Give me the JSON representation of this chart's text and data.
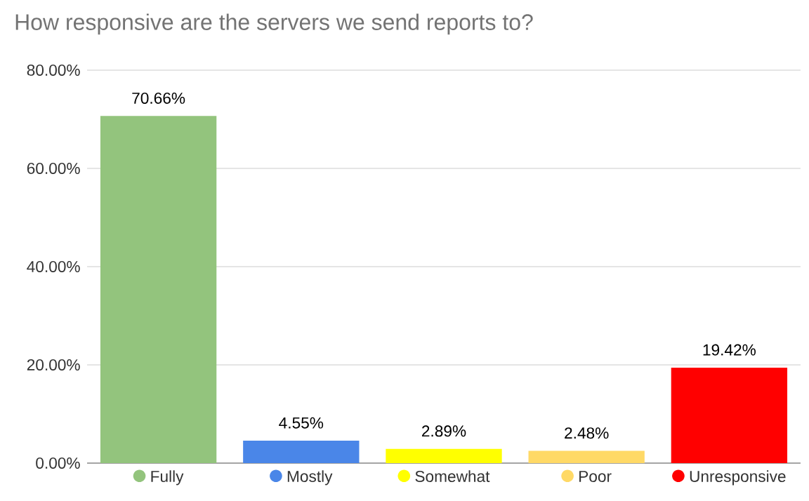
{
  "chart_data": {
    "type": "bar",
    "title": "How responsive are the servers we send reports to?",
    "categories": [
      "Fully",
      "Mostly",
      "Somewhat",
      "Poor",
      "Unresponsive"
    ],
    "values": [
      70.66,
      4.55,
      2.89,
      2.48,
      19.42
    ],
    "value_labels": [
      "70.66%",
      "4.55%",
      "2.89%",
      "2.48%",
      "19.42%"
    ],
    "colors": [
      "#93c47d",
      "#4a86e8",
      "#ffff00",
      "#ffd966",
      "#ff0000"
    ],
    "ylim": [
      0,
      80
    ],
    "yticks": [
      {
        "value": 0,
        "label": "0.00%"
      },
      {
        "value": 20,
        "label": "20.00%"
      },
      {
        "value": 40,
        "label": "40.00%"
      },
      {
        "value": 60,
        "label": "60.00%"
      },
      {
        "value": 80,
        "label": "80.00%"
      }
    ],
    "grid": "y"
  }
}
